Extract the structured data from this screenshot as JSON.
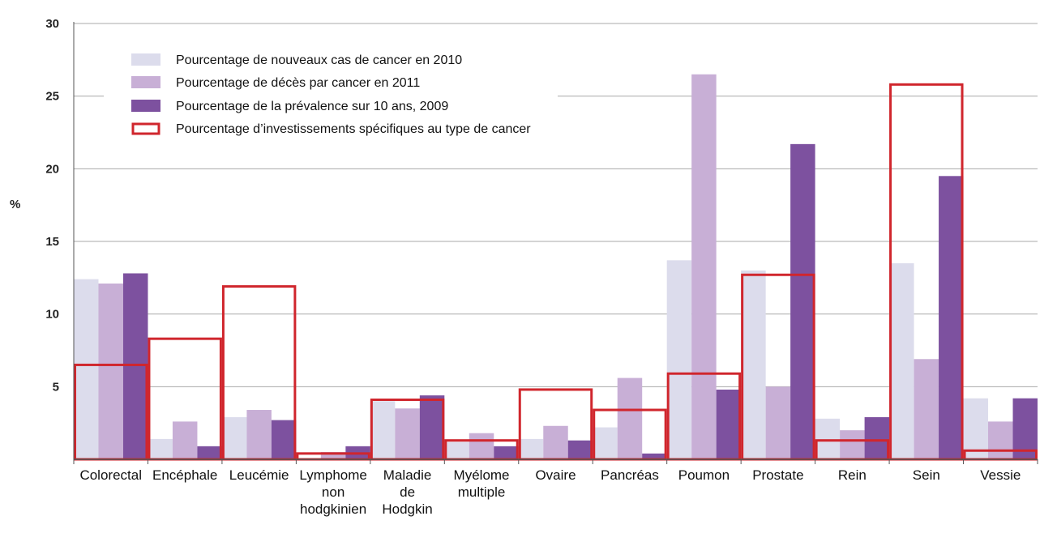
{
  "chart_data": {
    "type": "bar",
    "ylabel": "%",
    "ylim": [
      0,
      30
    ],
    "yticks": [
      5,
      10,
      15,
      20,
      25,
      30
    ],
    "grid": true,
    "legend_position": "top-left",
    "categories": [
      [
        "Colorectal"
      ],
      [
        "Encéphale"
      ],
      [
        "Leucémie"
      ],
      [
        "Lymphome",
        "non",
        "hodgkinien"
      ],
      [
        "Maladie",
        "de",
        "Hodgkin"
      ],
      [
        "Myélome",
        "multiple"
      ],
      [
        "Ovaire"
      ],
      [
        "Pancréas"
      ],
      [
        "Poumon"
      ],
      [
        "Prostate"
      ],
      [
        "Rein"
      ],
      [
        "Sein"
      ],
      [
        "Vessie"
      ]
    ],
    "series": [
      {
        "name": "Pourcentage de nouveaux cas de cancer en 2010",
        "color": "#dcdcec",
        "style": "bar",
        "values": [
          12.4,
          1.4,
          2.9,
          0,
          4.0,
          1.2,
          1.4,
          2.2,
          13.7,
          13.0,
          2.8,
          13.5,
          4.2
        ]
      },
      {
        "name": "Pourcentage de décès par cancer en 2011",
        "color": "#c8afd6",
        "style": "bar",
        "values": [
          12.1,
          2.6,
          3.4,
          0.5,
          3.5,
          1.8,
          2.3,
          5.6,
          26.5,
          5.0,
          2.0,
          6.9,
          2.6
        ]
      },
      {
        "name": "Pourcentage de la prévalence sur 10 ans, 2009",
        "color": "#7d519f",
        "style": "bar",
        "values": [
          12.8,
          0.9,
          2.7,
          0.9,
          4.4,
          0.9,
          1.3,
          0.4,
          4.8,
          21.7,
          2.9,
          19.5,
          4.2
        ]
      },
      {
        "name": "Pourcentage d’investissements spécifiques au type de cancer",
        "color": "#d0262d",
        "style": "outline",
        "values": [
          6.5,
          8.3,
          11.9,
          0.4,
          4.1,
          1.3,
          4.8,
          3.4,
          5.9,
          12.7,
          1.3,
          25.8,
          0.6
        ]
      }
    ]
  }
}
